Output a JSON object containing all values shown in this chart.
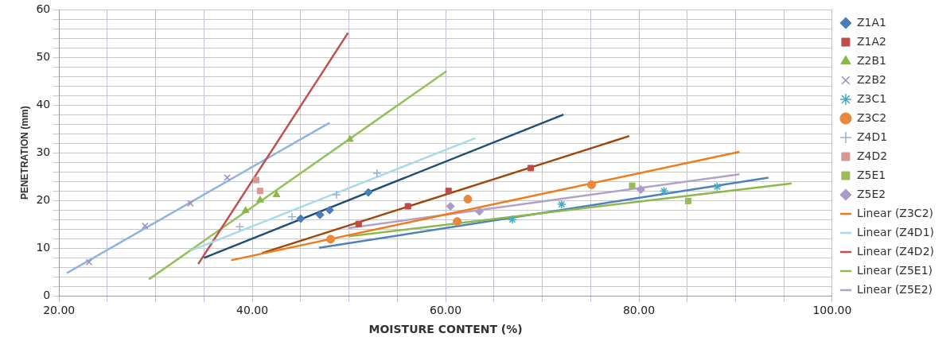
{
  "chart_data": {
    "type": "scatter",
    "xlabel": "MOISTURE CONTENT (%)",
    "ylabel": "PENETRATION (mm)",
    "xlim": [
      20,
      100
    ],
    "xticks": [
      {
        "value": 20,
        "label": "20.00"
      },
      {
        "value": 25,
        "label": null
      },
      {
        "value": 30,
        "label": null
      },
      {
        "value": 35,
        "label": null
      },
      {
        "value": 40,
        "label": "40.00"
      },
      {
        "value": 45,
        "label": null
      },
      {
        "value": 50,
        "label": null
      },
      {
        "value": 55,
        "label": null
      },
      {
        "value": 60,
        "label": "60.00"
      },
      {
        "value": 65,
        "label": null
      },
      {
        "value": 70,
        "label": null
      },
      {
        "value": 75,
        "label": null
      },
      {
        "value": 80,
        "label": "80.00"
      },
      {
        "value": 85,
        "label": null
      },
      {
        "value": 90,
        "label": null
      },
      {
        "value": 95,
        "label": null
      },
      {
        "value": 100,
        "label": "100.00"
      }
    ],
    "ylim": [
      0,
      60
    ],
    "yticks": [
      0,
      {
        "value": 2,
        "label": null
      },
      {
        "value": 4,
        "label": null
      },
      {
        "value": 6,
        "label": null
      },
      {
        "value": 8,
        "label": null
      },
      10,
      {
        "value": 12,
        "label": null
      },
      {
        "value": 14,
        "label": null
      },
      {
        "value": 16,
        "label": null
      },
      {
        "value": 18,
        "label": null
      },
      20,
      {
        "value": 22,
        "label": null
      },
      {
        "value": 24,
        "label": null
      },
      {
        "value": 26,
        "label": null
      },
      {
        "value": 28,
        "label": null
      },
      30,
      {
        "value": 32,
        "label": null
      },
      {
        "value": 34,
        "label": null
      },
      {
        "value": 36,
        "label": null
      },
      {
        "value": 38,
        "label": null
      },
      40,
      {
        "value": 42,
        "label": null
      },
      {
        "value": 44,
        "label": null
      },
      {
        "value": 46,
        "label": null
      },
      {
        "value": 48,
        "label": null
      },
      50,
      {
        "value": 52,
        "label": null
      },
      {
        "value": 54,
        "label": null
      },
      {
        "value": 56,
        "label": null
      },
      {
        "value": 58,
        "label": null
      },
      60
    ],
    "grid": true,
    "legend": "right",
    "series": [
      {
        "name": "Z1A1",
        "color": "#4a7ebb",
        "marker": "diamond",
        "x": [
          45,
          47,
          48,
          52
        ],
        "values": [
          16.2,
          17,
          18,
          21.7
        ]
      },
      {
        "name": "Z1A2",
        "color": "#be4b48",
        "marker": "square",
        "x": [
          51,
          56.1,
          60.3,
          68.8
        ],
        "values": [
          15.1,
          18.8,
          22,
          26.8
        ]
      },
      {
        "name": "Z2B1",
        "color": "#8cb848",
        "marker": "triangle",
        "x": [
          39.3,
          40.8,
          42.5,
          50.1
        ],
        "values": [
          17.9,
          20.1,
          21.2,
          32.8
        ]
      },
      {
        "name": "Z2B2",
        "color": "#a08cc0",
        "marker": "cross",
        "x": [
          23.1,
          28.9,
          33.6,
          37.4
        ],
        "values": [
          7.1,
          14.7,
          19.4,
          24.8
        ]
      },
      {
        "name": "Z3C1",
        "color": "#46aac5",
        "marker": "cross",
        "x": [
          66.9,
          72,
          82.6,
          88.1
        ],
        "values": [
          16,
          19.2,
          22,
          22.9
        ]
      },
      {
        "name": "Z3C2",
        "color": "#e8883a",
        "marker": "circle",
        "x": [
          48.1,
          61.2,
          62.3,
          75.1
        ],
        "values": [
          11.9,
          15.6,
          20.3,
          23.3
        ]
      },
      {
        "name": "Z4D1",
        "color": "#95b3d7",
        "marker": "cross",
        "x": [
          38.7,
          44.1,
          48.7,
          52.9
        ],
        "values": [
          14.5,
          16.6,
          21.2,
          25.7
        ]
      },
      {
        "name": "Z4D2",
        "color": "#d99694",
        "marker": "square",
        "x": [
          40.4,
          40.8
        ],
        "values": [
          24.3,
          22
        ]
      },
      {
        "name": "Z5E1",
        "color": "#9bbb59",
        "marker": "square",
        "x": [
          79.3,
          85.1
        ],
        "values": [
          23.1,
          19.9
        ]
      },
      {
        "name": "Z5E2",
        "color": "#a99bc8",
        "marker": "diamond",
        "x": [
          60.5,
          63.5,
          80.2
        ],
        "values": [
          18.8,
          17.7,
          22.3
        ]
      },
      {
        "name": "Linear (Z3C2)",
        "type": "line",
        "color": "#f07b1a",
        "x": [
          37.8,
          90.4
        ],
        "values": [
          7.5,
          30.2
        ]
      },
      {
        "name": "Linear (Z4D1)",
        "type": "line",
        "color": "#a9dbe8",
        "x": [
          33.6,
          63.1
        ],
        "values": [
          9.5,
          33.1
        ]
      },
      {
        "name": "Linear (Z4D2)",
        "type": "line",
        "color": "#c0504d",
        "x": [
          34.4,
          49.9
        ],
        "values": [
          6.7,
          55.1
        ]
      },
      {
        "name": "Linear (Z5E1)",
        "type": "line",
        "color": "#8db84a",
        "x": [
          50,
          95.8
        ],
        "values": [
          12.5,
          23.6
        ]
      },
      {
        "name": "Linear (Z5E2)",
        "type": "line",
        "color": "#b3a2c7",
        "x": [
          49.9,
          90.4
        ],
        "values": [
          14.2,
          25.5
        ]
      },
      {
        "type": "line",
        "color": "#1f4e79",
        "x": [
          35,
          72.2
        ],
        "values": [
          8,
          38
        ]
      },
      {
        "type": "line",
        "color": "#a0460a",
        "x": [
          41,
          79
        ],
        "values": [
          9,
          33.5
        ]
      },
      {
        "type": "line",
        "color": "#92c25a",
        "x": [
          29.3,
          60.1
        ],
        "values": [
          3.5,
          47.1
        ]
      },
      {
        "type": "line",
        "color": "#8db4e2",
        "x": [
          20.8,
          48
        ],
        "values": [
          4.8,
          36.3
        ]
      },
      {
        "type": "line",
        "color": "#4f81bd",
        "x": [
          46.9,
          93.4
        ],
        "values": [
          10.1,
          24.8
        ]
      }
    ]
  }
}
